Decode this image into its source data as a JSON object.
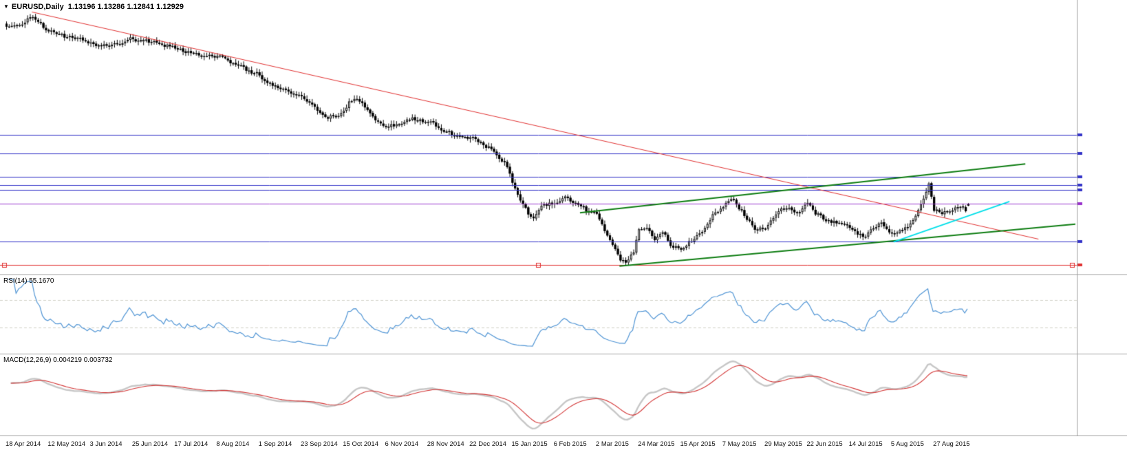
{
  "header": {
    "expand_icon": "▼",
    "symbol_period": "EURUSD,Daily",
    "ohlc": "1.13196 1.13286 1.12841 1.12929"
  },
  "rsi_panel": {
    "label": "RSI(14) 55.1670"
  },
  "macd_panel": {
    "label": "MACD(12,26,9) 0.004219 0.003732"
  },
  "colors": {
    "background": "#ffffff",
    "border": "#9b9b9b",
    "candle": "#000000",
    "candle_up_fill": "#ffffff",
    "rsi_line": "#4f94d4",
    "rsi_levels": "#cfcfc4",
    "macd_line": "#c6c6c6",
    "macd_signal": "#d23333",
    "hline_blue": "#3434c8",
    "hline_purple": "#9932cc",
    "hline_red": "#e03030",
    "trend_red": "#e03030",
    "trend_green": "#0e7d12",
    "trend_cyan": "#00dfe8",
    "text": "#000000"
  },
  "chart_data": {
    "type": "candlestick",
    "symbol": "EURUSD",
    "timeframe": "Daily",
    "current_ohlc": {
      "open": 1.13196,
      "high": 1.13286,
      "low": 1.12841,
      "close": 1.12929
    },
    "ylim": [
      1.035,
      1.415
    ],
    "n_bars": 366,
    "bars_per_label": 16,
    "x_labels": [
      "18 Apr 2014",
      "12 May 2014",
      "3 Jun 2014",
      "25 Jun 2014",
      "17 Jul 2014",
      "8 Aug 2014",
      "1 Sep 2014",
      "23 Sep 2014",
      "15 Oct 2014",
      "6 Nov 2014",
      "28 Nov 2014",
      "22 Dec 2014",
      "15 Jan 2015",
      "6 Feb 2015",
      "2 Mar 2015",
      "24 Mar 2015",
      "15 Apr 2015",
      "7 May 2015",
      "29 May 2015",
      "22 Jun 2015",
      "14 Jul 2015",
      "5 Aug 2015",
      "27 Aug 2015"
    ],
    "close_anchors": [
      [
        0,
        1.381
      ],
      [
        6,
        1.387
      ],
      [
        10,
        1.393
      ],
      [
        16,
        1.376
      ],
      [
        22,
        1.368
      ],
      [
        28,
        1.364
      ],
      [
        32,
        1.36
      ],
      [
        38,
        1.354
      ],
      [
        44,
        1.36
      ],
      [
        48,
        1.365
      ],
      [
        54,
        1.36
      ],
      [
        60,
        1.356
      ],
      [
        64,
        1.352
      ],
      [
        70,
        1.346
      ],
      [
        76,
        1.34
      ],
      [
        80,
        1.338
      ],
      [
        86,
        1.33
      ],
      [
        92,
        1.32
      ],
      [
        96,
        1.313
      ],
      [
        102,
        1.297
      ],
      [
        108,
        1.289
      ],
      [
        112,
        1.284
      ],
      [
        116,
        1.273
      ],
      [
        122,
        1.255
      ],
      [
        126,
        1.258
      ],
      [
        130,
        1.275
      ],
      [
        133,
        1.281
      ],
      [
        137,
        1.266
      ],
      [
        141,
        1.248
      ],
      [
        145,
        1.24
      ],
      [
        149,
        1.246
      ],
      [
        153,
        1.252
      ],
      [
        158,
        1.247
      ],
      [
        162,
        1.244
      ],
      [
        166,
        1.234
      ],
      [
        171,
        1.228
      ],
      [
        176,
        1.223
      ],
      [
        181,
        1.216
      ],
      [
        185,
        1.208
      ],
      [
        189,
        1.19
      ],
      [
        192,
        1.163
      ],
      [
        195,
        1.14
      ],
      [
        198,
        1.12
      ],
      [
        200,
        1.113
      ],
      [
        203,
        1.129
      ],
      [
        208,
        1.132
      ],
      [
        212,
        1.138
      ],
      [
        216,
        1.134
      ],
      [
        220,
        1.122
      ],
      [
        224,
        1.118
      ],
      [
        227,
        1.094
      ],
      [
        230,
        1.07
      ],
      [
        233,
        1.052
      ],
      [
        235,
        1.049
      ],
      [
        238,
        1.062
      ],
      [
        240,
        1.092
      ],
      [
        243,
        1.097
      ],
      [
        246,
        1.082
      ],
      [
        249,
        1.09
      ],
      [
        252,
        1.074
      ],
      [
        256,
        1.068
      ],
      [
        259,
        1.077
      ],
      [
        262,
        1.085
      ],
      [
        265,
        1.098
      ],
      [
        268,
        1.119
      ],
      [
        272,
        1.126
      ],
      [
        275,
        1.138
      ],
      [
        278,
        1.126
      ],
      [
        281,
        1.112
      ],
      [
        284,
        1.097
      ],
      [
        288,
        1.098
      ],
      [
        291,
        1.114
      ],
      [
        294,
        1.124
      ],
      [
        297,
        1.128
      ],
      [
        300,
        1.117
      ],
      [
        304,
        1.134
      ],
      [
        307,
        1.121
      ],
      [
        310,
        1.113
      ],
      [
        314,
        1.108
      ],
      [
        318,
        1.103
      ],
      [
        320,
        1.1
      ],
      [
        323,
        1.09
      ],
      [
        326,
        1.088
      ],
      [
        329,
        1.096
      ],
      [
        332,
        1.104
      ],
      [
        336,
        1.088
      ],
      [
        339,
        1.095
      ],
      [
        342,
        1.102
      ],
      [
        345,
        1.113
      ],
      [
        348,
        1.14
      ],
      [
        350,
        1.159
      ],
      [
        352,
        1.124
      ],
      [
        355,
        1.117
      ],
      [
        358,
        1.124
      ],
      [
        361,
        1.128
      ],
      [
        364,
        1.121
      ],
      [
        365,
        1.12929
      ]
    ],
    "hlines": [
      {
        "name": "resistance-level-1",
        "price": 1.229,
        "color": "hline_blue",
        "width": 1
      },
      {
        "name": "resistance-level-2",
        "price": 1.203,
        "color": "hline_blue",
        "width": 1
      },
      {
        "name": "resistance-level-3",
        "price": 1.17,
        "color": "hline_blue",
        "width": 1
      },
      {
        "name": "resistance-level-4",
        "price": 1.158,
        "color": "hline_blue",
        "width": 1
      },
      {
        "name": "resistance-level-5",
        "price": 1.151,
        "color": "hline_blue",
        "width": 1
      },
      {
        "name": "pivot-level",
        "price": 1.132,
        "color": "hline_purple",
        "width": 1
      },
      {
        "name": "support-level",
        "price": 1.079,
        "color": "hline_blue",
        "width": 1
      },
      {
        "name": "major-support",
        "price": 1.046,
        "color": "hline_red",
        "width": 1,
        "handles": true
      }
    ],
    "trendlines": [
      {
        "name": "descending-resistance",
        "color": "trend_red",
        "width": 1,
        "from": [
          10,
          1.402
        ],
        "to": [
          392,
          1.082
        ]
      },
      {
        "name": "rising-channel-upper",
        "color": "trend_green",
        "width": 2,
        "from": [
          218,
          1.119
        ],
        "to": [
          387,
          1.188
        ]
      },
      {
        "name": "rising-channel-lower",
        "color": "trend_green",
        "width": 2,
        "from": [
          233,
          1.044
        ],
        "to": [
          406,
          1.103
        ]
      },
      {
        "name": "short-term-support",
        "color": "trend_cyan",
        "width": 2,
        "from": [
          337,
          1.078
        ],
        "to": [
          381,
          1.135
        ]
      }
    ],
    "indicators": {
      "rsi": {
        "name": "RSI",
        "period": 14,
        "current": 55.167,
        "overbought": 70,
        "oversold": 30,
        "range": [
          0,
          100
        ]
      },
      "macd": {
        "name": "MACD",
        "fast": 12,
        "slow": 26,
        "signal_period": 9,
        "current_macd": 0.004219,
        "current_signal": 0.003732
      }
    }
  }
}
